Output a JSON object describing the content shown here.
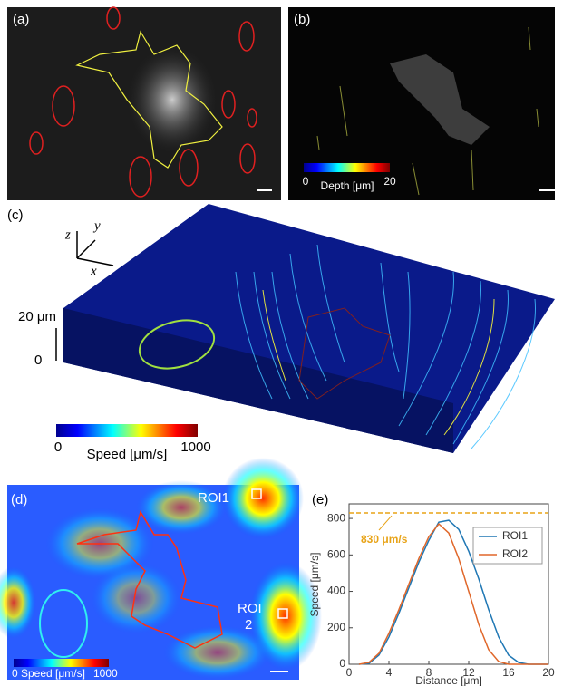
{
  "panels": {
    "a": {
      "label": "(a)"
    },
    "b": {
      "label": "(b)",
      "colorbar": {
        "min": "0",
        "max": "20",
        "title": "Depth [μm]"
      }
    },
    "c": {
      "label": "(c)",
      "axes": {
        "z": "z",
        "y": "y",
        "x": "x"
      },
      "height_label": "20 μm",
      "height_zero": "0",
      "colorbar": {
        "min": "0",
        "max": "1000",
        "title": "Speed [μm/s]"
      }
    },
    "d": {
      "label": "(d)",
      "roi1": "ROI1",
      "roi2_line1": "ROI",
      "roi2_line2": "2",
      "colorbar": {
        "min": "0",
        "max": "1000",
        "title": "Speed [μm/s]"
      }
    },
    "e": {
      "label": "(e)"
    }
  },
  "chart_data": {
    "type": "line",
    "x_label": "Distance [μm]",
    "y_label": "Speed [μm/s]",
    "x": [
      1,
      2,
      3,
      4,
      5,
      6,
      7,
      8,
      9,
      10,
      11,
      12,
      13,
      14,
      15,
      16,
      17,
      18,
      19,
      20
    ],
    "series": [
      {
        "name": "ROI1",
        "color": "#1f77b4",
        "values": [
          0,
          5,
          50,
          150,
          280,
          420,
          560,
          680,
          780,
          790,
          740,
          620,
          470,
          300,
          150,
          50,
          10,
          0,
          0,
          0
        ]
      },
      {
        "name": "ROI2",
        "color": "#e0672a",
        "values": [
          0,
          10,
          60,
          170,
          300,
          440,
          580,
          700,
          770,
          720,
          580,
          400,
          220,
          80,
          15,
          0,
          0,
          0,
          0,
          0
        ]
      }
    ],
    "reference_line": {
      "value": 830,
      "color": "#e8a317"
    },
    "annotation": "830 μm/s",
    "xlim": [
      0,
      20
    ],
    "xticks": [
      0,
      4,
      8,
      12,
      16,
      20
    ],
    "ylim": [
      0,
      880
    ],
    "yticks": [
      0,
      200,
      400,
      600,
      800
    ],
    "legend": "upper right"
  }
}
